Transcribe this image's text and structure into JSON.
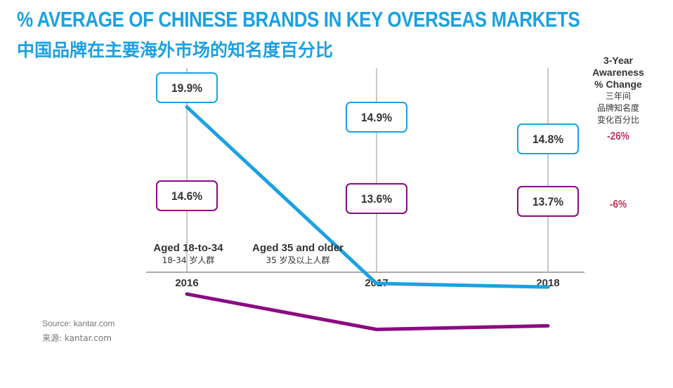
{
  "title": "% AVERAGE OF CHINESE BRANDS IN KEY OVERSEAS MARKETS",
  "subtitle": "中国品牌在主要海外市场的知名度百分比",
  "change_header": {
    "en": "3-Year\nAwareness\n% Change",
    "zh": "三年间\n品牌知名度\n变化百分比"
  },
  "source": {
    "en": "Source: kantar.com",
    "zh": "来源: kantar.com"
  },
  "chart_data": {
    "type": "line",
    "x": [
      "2016",
      "2017",
      "2018"
    ],
    "ylim": [
      12,
      21
    ],
    "grid": false,
    "series": [
      {
        "name": "Aged 18-to-34",
        "name_zh": "18-34 岁人群",
        "color": "#1ba1e2",
        "values": [
          19.9,
          14.9,
          14.8
        ],
        "labels": [
          "19.9%",
          "14.9%",
          "14.8%"
        ],
        "change": "-26%"
      },
      {
        "name": "Aged 35 and older",
        "name_zh": "35 岁及以上人群",
        "color": "#8b0a82",
        "values": [
          14.6,
          13.6,
          13.7
        ],
        "labels": [
          "14.6%",
          "13.6%",
          "13.7%"
        ],
        "change": "-6%"
      }
    ]
  }
}
